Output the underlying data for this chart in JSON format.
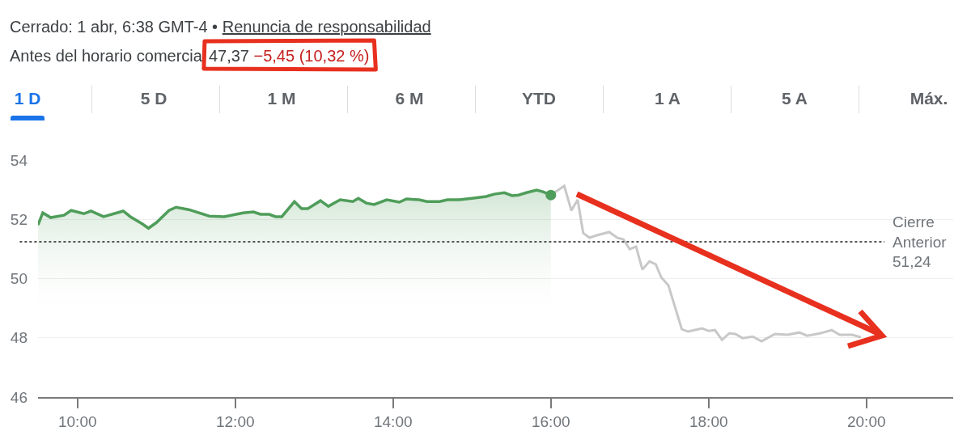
{
  "chart_data": {
    "type": "line",
    "annotations": [
      "Cerrado: 1 abr, 6:38 GMT-4",
      "•",
      "Renuncia de responsabilidad",
      "Antes del horario comercia",
      "47,37",
      "−5,45 (10,32 %)",
      "1 D",
      "5 D",
      "1 M",
      "6 M",
      "YTD",
      "1 A",
      "5 A",
      "Máx."
    ],
    "series": [
      {
        "type": "area",
        "color": "#4f9d5a",
        "x": [
          9.5,
          9.56,
          9.66,
          9.83,
          9.92,
          10.08,
          10.17,
          10.33,
          10.58,
          10.67,
          10.82,
          10.9,
          11.0,
          11.16,
          11.25,
          11.41,
          11.67,
          11.86,
          12.1,
          12.23,
          12.32,
          12.43,
          12.51,
          12.59,
          12.75,
          12.84,
          12.92,
          13.08,
          13.18,
          13.33,
          13.49,
          13.56,
          13.66,
          13.76,
          13.92,
          14.08,
          14.17,
          14.33,
          14.43,
          14.59,
          14.69,
          14.84,
          15.0,
          15.18,
          15.28,
          15.41,
          15.51,
          15.59,
          15.69,
          15.82,
          15.9,
          16.0
        ],
        "values": [
          51.81,
          52.22,
          52.06,
          52.14,
          52.3,
          52.19,
          52.28,
          52.09,
          52.28,
          52.09,
          51.85,
          51.7,
          51.89,
          52.3,
          52.41,
          52.33,
          52.11,
          52.09,
          52.22,
          52.25,
          52.17,
          52.17,
          52.09,
          52.09,
          52.6,
          52.36,
          52.36,
          52.63,
          52.44,
          52.66,
          52.6,
          52.71,
          52.55,
          52.5,
          52.66,
          52.58,
          52.69,
          52.66,
          52.6,
          52.6,
          52.66,
          52.66,
          52.71,
          52.77,
          52.85,
          52.9,
          52.8,
          52.82,
          52.9,
          52.99,
          52.93,
          52.82
        ]
      },
      {
        "type": "scatter",
        "color": "#4f9d5a",
        "marker": "circle",
        "x": [
          16.0
        ],
        "values": [
          52.82
        ]
      },
      {
        "color": "#c8c8c8",
        "x": [
          16.0,
          16.17,
          16.26,
          16.34,
          16.41,
          16.49,
          16.58,
          16.74,
          16.84,
          16.92,
          17.0,
          17.08,
          17.16,
          17.25,
          17.33,
          17.4,
          17.49,
          17.66,
          17.74,
          17.92,
          18.0,
          18.08,
          18.17,
          18.26,
          18.34,
          18.43,
          18.56,
          18.67,
          18.84,
          19.0,
          19.15,
          19.25,
          19.41,
          19.56,
          19.66,
          19.82,
          19.93
        ],
        "values": [
          52.82,
          53.13,
          52.3,
          52.66,
          51.54,
          51.38,
          51.46,
          51.57,
          51.38,
          51.32,
          50.99,
          51.08,
          50.31,
          50.58,
          50.48,
          50.04,
          49.77,
          48.29,
          48.21,
          48.32,
          48.23,
          48.26,
          47.93,
          48.15,
          48.13,
          47.99,
          48.04,
          47.88,
          48.13,
          48.1,
          48.18,
          48.07,
          48.15,
          48.26,
          48.1,
          48.1,
          48.02
        ]
      }
    ],
    "ref_lines": [
      {
        "axis": "y",
        "value": 51.24,
        "label": "Cierre\nAnterior\n51,24",
        "color": "#555555",
        "line_style": "dotted"
      }
    ],
    "xlim": [
      9.5,
      21.1
    ],
    "xticks": [
      {
        "value": 10,
        "label": "10:00"
      },
      {
        "value": 12,
        "label": "12:00"
      },
      {
        "value": 14,
        "label": "14:00"
      },
      {
        "value": 16,
        "label": "16:00"
      },
      {
        "value": 18,
        "label": "18:00"
      },
      {
        "value": 20,
        "label": "20:00"
      }
    ],
    "ylim": [
      46,
      54
    ],
    "yticks": [
      46,
      48,
      50,
      52,
      54
    ],
    "grid": "y",
    "line_style": "solid"
  }
}
